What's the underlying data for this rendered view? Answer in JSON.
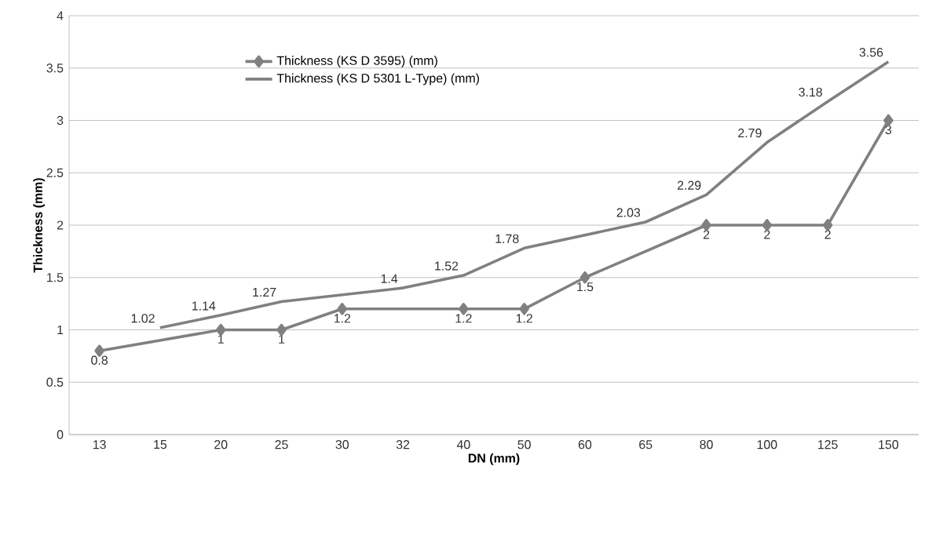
{
  "chart_data": {
    "type": "line",
    "xlabel": "DN (mm)",
    "ylabel": "Thickness (mm)",
    "categories": [
      "13",
      "15",
      "20",
      "25",
      "30",
      "32",
      "40",
      "50",
      "60",
      "65",
      "80",
      "100",
      "125",
      "150"
    ],
    "series": [
      {
        "name": "Thickness (KS D 3595) (mm)",
        "color": "#808080",
        "marker": "diamond",
        "values": [
          0.8,
          null,
          1,
          1,
          1.2,
          null,
          1.2,
          1.2,
          1.5,
          null,
          2,
          2,
          2,
          3
        ]
      },
      {
        "name": "Thickness (KS D 5301 L-Type) (mm)",
        "color": "#808080",
        "marker": "none",
        "values": [
          null,
          1.02,
          1.14,
          1.27,
          null,
          1.4,
          1.52,
          1.78,
          null,
          2.03,
          2.29,
          2.79,
          3.18,
          3.56
        ]
      }
    ],
    "ylim": [
      0,
      4
    ],
    "yticks": [
      0,
      0.5,
      1,
      1.5,
      2,
      2.5,
      3,
      3.5,
      4
    ],
    "grid": "y",
    "legend": "top left",
    "data_labels": true
  }
}
